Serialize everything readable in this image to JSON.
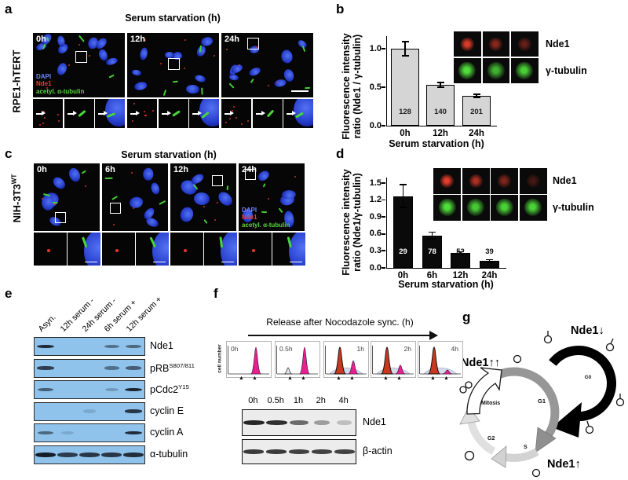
{
  "panel_letters": {
    "a": "a",
    "b": "b",
    "c": "c",
    "d": "d",
    "e": "e",
    "f": "f",
    "g": "g"
  },
  "panel_a": {
    "title": "Serum starvation (h)",
    "cell_line": "RPE1-hTERT",
    "timepoints": [
      "0h",
      "12h",
      "24h"
    ],
    "legend": [
      {
        "label": "DAPI",
        "color": "#6b86ff"
      },
      {
        "label": "Nde1",
        "color": "#ef3b2a"
      },
      {
        "label": "acetyl. α-tubulin",
        "color": "#57d33f"
      }
    ]
  },
  "panel_b": {
    "inset_rows": [
      {
        "label": "Nde1",
        "color": "#f0402c",
        "intensities": [
          0.9,
          0.55,
          0.4
        ]
      },
      {
        "label": "γ-tubulin",
        "color": "#52e83c",
        "intensities": [
          0.95,
          0.75,
          0.88
        ]
      }
    ]
  },
  "panel_c": {
    "title": "Serum starvation (h)",
    "cell_line_base": "NIH-3T3",
    "cell_line_sup": "WT",
    "timepoints": [
      "0h",
      "6h",
      "12h",
      "24h"
    ],
    "legend": [
      {
        "label": "DAPI",
        "color": "#6b86ff"
      },
      {
        "label": "Nde1",
        "color": "#ef3b2a"
      },
      {
        "label": "acetyl. α-tubulin",
        "color": "#57d33f"
      }
    ]
  },
  "panel_d": {
    "inset_rows": [
      {
        "label": "Nde1",
        "color": "#f0402c",
        "intensities": [
          0.95,
          0.7,
          0.5,
          0.25
        ]
      },
      {
        "label": "γ-tubulin",
        "color": "#52e83c",
        "intensities": [
          0.95,
          0.85,
          0.9,
          0.9
        ]
      }
    ]
  },
  "panel_e": {
    "lanes": [
      "Asyn.",
      "12h serum -",
      "24h serum -",
      "6h serum +",
      "12h serum +"
    ],
    "blots": [
      {
        "label": "Nde1",
        "sup": "",
        "bands": [
          0.92,
          0,
          0,
          0.5,
          0.55
        ]
      },
      {
        "label": "pRB",
        "sup": "S807/811",
        "bands": [
          0.8,
          0,
          0,
          0.5,
          0.6
        ]
      },
      {
        "label": "pCdc2",
        "sup": "Y15",
        "bands": [
          0.6,
          0,
          0,
          0.25,
          0.95
        ]
      },
      {
        "label": "cyclin E",
        "sup": "",
        "bands": [
          0,
          0,
          0.12,
          0,
          0.85
        ]
      },
      {
        "label": "cyclin A",
        "sup": "",
        "bands": [
          0.55,
          0.12,
          0,
          0,
          0.9
        ]
      },
      {
        "label": "α-tubulin",
        "sup": "",
        "bands": [
          1,
          0.82,
          0.85,
          0.85,
          0.9
        ]
      }
    ]
  },
  "panel_f": {
    "title": "Release after Nocodazole sync. (h)",
    "ylabel": "cell number",
    "histograms": [
      {
        "label": "0h",
        "side": "left",
        "red": 0,
        "magenta": 1.0,
        "s": false,
        "minor": false
      },
      {
        "label": "0.5h",
        "side": "left",
        "red": 0,
        "magenta": 1.0,
        "s": false,
        "minor": true
      },
      {
        "label": "1h",
        "side": "right",
        "red": 1.0,
        "magenta": 0.5,
        "s": true,
        "minor": false
      },
      {
        "label": "2h",
        "side": "right",
        "red": 1.0,
        "magenta": 0.33,
        "s": true,
        "minor": false
      },
      {
        "label": "4h",
        "side": "right",
        "red": 1.0,
        "magenta": 0.15,
        "s": true,
        "minor": false
      }
    ],
    "lanes": [
      "0h",
      "0.5h",
      "1h",
      "2h",
      "4h"
    ],
    "blots": [
      {
        "label": "Nde1",
        "bands": [
          0.95,
          0.9,
          0.62,
          0.38,
          0.22
        ]
      },
      {
        "label": "β-actin",
        "bands": [
          0.85,
          0.85,
          0.82,
          0.82,
          0.82
        ]
      }
    ]
  },
  "panel_g": {
    "labels": {
      "g0_state": "Nde1↓",
      "m_state": "Nde1↑↑",
      "s_state": "Nde1↑",
      "g0": "G0",
      "g1": "G1",
      "s": "S",
      "g2": "G2",
      "mitosis": "Mitosis"
    }
  },
  "chart_data": [
    {
      "panel": "b",
      "type": "bar",
      "categories": [
        "0h",
        "12h",
        "24h"
      ],
      "values": [
        1.0,
        0.53,
        0.39
      ],
      "errors": [
        0.09,
        0.03,
        0.02
      ],
      "counts": [
        128,
        140,
        201
      ],
      "count_color": [
        "#222222",
        "#222222",
        "#222222"
      ],
      "ylabel_line1": "Fluorescence intensity",
      "ylabel_line2": "ratio (Nde1 / γ-tubulin)",
      "xlabel": "Serum starvation (h)",
      "yticks": [
        0.0,
        0.5,
        1.0
      ],
      "ytick_labels": [
        "0.0",
        "0.5",
        "1.0"
      ],
      "ylim": [
        0,
        1.15
      ],
      "bar_color": "#d5d5d5",
      "bar_border": "#000000"
    },
    {
      "panel": "d",
      "type": "bar",
      "categories": [
        "0h",
        "6h",
        "12h",
        "24h"
      ],
      "values": [
        1.27,
        0.57,
        0.26,
        0.13
      ],
      "errors": [
        0.2,
        0.06,
        0.025,
        0.015
      ],
      "counts": [
        29,
        78,
        52,
        39
      ],
      "count_color": [
        "#ffffff",
        "#ffffff",
        "#111111",
        "#111111"
      ],
      "ylabel_line1": "Fluorescence intensity",
      "ylabel_line2": "ratio (Nde1/γ-tubulin)",
      "xlabel": "Serum starvation (h)",
      "yticks": [
        0.0,
        0.3,
        0.6,
        0.9,
        1.2,
        1.5
      ],
      "ytick_labels": [
        "0.0",
        "0.3",
        "0.6",
        "0.9",
        "1.2",
        "1.5"
      ],
      "ylim": [
        0,
        1.58
      ],
      "bar_color": "#0a0a0a",
      "bar_border": "#000000"
    }
  ]
}
